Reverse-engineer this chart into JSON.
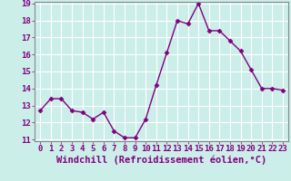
{
  "x": [
    0,
    1,
    2,
    3,
    4,
    5,
    6,
    7,
    8,
    9,
    10,
    11,
    12,
    13,
    14,
    15,
    16,
    17,
    18,
    19,
    20,
    21,
    22,
    23
  ],
  "y": [
    12.7,
    13.4,
    13.4,
    12.7,
    12.6,
    12.2,
    12.6,
    11.5,
    11.1,
    11.1,
    12.2,
    14.2,
    16.1,
    18.0,
    17.8,
    19.0,
    17.4,
    17.4,
    16.8,
    16.2,
    15.1,
    14.0,
    14.0,
    13.9
  ],
  "line_color": "#800080",
  "marker": "D",
  "marker_size": 2.5,
  "xlabel": "Windchill (Refroidissement éolien,°C)",
  "xlabel_fontsize": 7.5,
  "ylim": [
    11,
    19
  ],
  "xlim": [
    -0.5,
    23.5
  ],
  "yticks": [
    11,
    12,
    13,
    14,
    15,
    16,
    17,
    18,
    19
  ],
  "xticks": [
    0,
    1,
    2,
    3,
    4,
    5,
    6,
    7,
    8,
    9,
    10,
    11,
    12,
    13,
    14,
    15,
    16,
    17,
    18,
    19,
    20,
    21,
    22,
    23
  ],
  "bg_color": "#cceee8",
  "grid_color": "#ffffff",
  "tick_fontsize": 6.5,
  "line_width": 1.0
}
